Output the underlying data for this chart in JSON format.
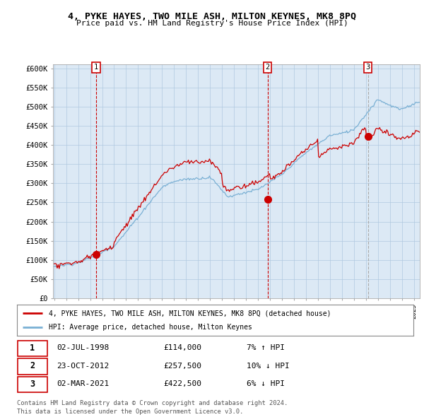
{
  "title": "4, PYKE HAYES, TWO MILE ASH, MILTON KEYNES, MK8 8PQ",
  "subtitle": "Price paid vs. HM Land Registry's House Price Index (HPI)",
  "ylabel_ticks": [
    "£0",
    "£50K",
    "£100K",
    "£150K",
    "£200K",
    "£250K",
    "£300K",
    "£350K",
    "£400K",
    "£450K",
    "£500K",
    "£550K",
    "£600K"
  ],
  "ytick_values": [
    0,
    50000,
    100000,
    150000,
    200000,
    250000,
    300000,
    350000,
    400000,
    450000,
    500000,
    550000,
    600000
  ],
  "ylim": [
    0,
    610000
  ],
  "xlim_start": 1994.9,
  "xlim_end": 2025.5,
  "sale_year_floats": [
    1998.5,
    2012.8,
    2021.17
  ],
  "sale_prices": [
    114000,
    257500,
    422500
  ],
  "sale_labels": [
    "1",
    "2",
    "3"
  ],
  "sale_info": [
    {
      "label": "1",
      "date": "02-JUL-1998",
      "price": "£114,000",
      "hpi": "7% ↑ HPI"
    },
    {
      "label": "2",
      "date": "23-OCT-2012",
      "price": "£257,500",
      "hpi": "10% ↓ HPI"
    },
    {
      "label": "3",
      "date": "02-MAR-2021",
      "price": "£422,500",
      "hpi": "6% ↓ HPI"
    }
  ],
  "legend_line1": "4, PYKE HAYES, TWO MILE ASH, MILTON KEYNES, MK8 8PQ (detached house)",
  "legend_line2": "HPI: Average price, detached house, Milton Keynes",
  "footer1": "Contains HM Land Registry data © Crown copyright and database right 2024.",
  "footer2": "This data is licensed under the Open Government Licence v3.0.",
  "line_color_red": "#cc0000",
  "line_color_blue": "#7ab0d4",
  "chart_bg": "#dce9f5",
  "background_color": "#ffffff",
  "grid_color": "#b0c8e0",
  "sale_marker_color": "#cc0000",
  "dashed_line_color": "#cc0000",
  "dashed_line_color3": "#aaaaaa"
}
